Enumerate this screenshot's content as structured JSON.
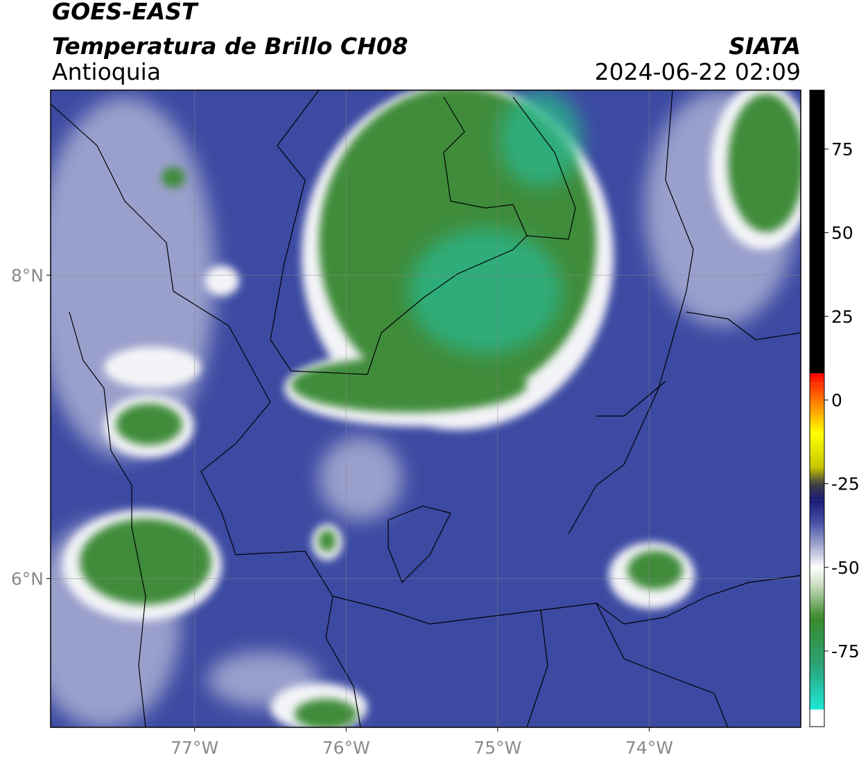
{
  "header": {
    "title": "GOES-EAST",
    "subtitle": "Temperatura de Brillo CH08",
    "region": "Antioquia",
    "source": "SIATA",
    "datetime": "2024-06-22 02:09"
  },
  "map": {
    "lonlim": [
      -77.95,
      -73.0
    ],
    "latlim": [
      5.02,
      9.22
    ],
    "lon_ticks": [
      {
        "value": -77,
        "label": "77°W"
      },
      {
        "value": -76,
        "label": "76°W"
      },
      {
        "value": -75,
        "label": "75°W"
      },
      {
        "value": -74,
        "label": "74°W"
      }
    ],
    "lat_ticks": [
      {
        "value": 8,
        "label": "8°N"
      },
      {
        "value": 6,
        "label": "6°N"
      }
    ],
    "grid": true
  },
  "colorbar": {
    "range": [
      -97.6,
      92.6
    ],
    "ticks": [
      75,
      50,
      25,
      0,
      -25,
      -50,
      -75
    ],
    "stops": [
      {
        "value": -97.6,
        "color": "#ffffff"
      },
      {
        "value": -92.5,
        "color": "#ffffff"
      },
      {
        "value": -92.5,
        "color": "#1ee8d8"
      },
      {
        "value": -80,
        "color": "#2aa57a"
      },
      {
        "value": -65,
        "color": "#3a8a2a"
      },
      {
        "value": -55,
        "color": "#cfe0c5"
      },
      {
        "value": -50,
        "color": "#ffffff"
      },
      {
        "value": -45,
        "color": "#b8bcd8"
      },
      {
        "value": -37,
        "color": "#4a56a8"
      },
      {
        "value": -30,
        "color": "#1a1a7a"
      },
      {
        "value": -25,
        "color": "#404040"
      },
      {
        "value": -20,
        "color": "#c8c800"
      },
      {
        "value": -10,
        "color": "#ffff00"
      },
      {
        "value": -3,
        "color": "#ffa000"
      },
      {
        "value": 5,
        "color": "#ff3000"
      },
      {
        "value": 8,
        "color": "#ff0000"
      },
      {
        "value": 8,
        "color": "#000000"
      },
      {
        "value": 92.6,
        "color": "#000000"
      }
    ]
  }
}
